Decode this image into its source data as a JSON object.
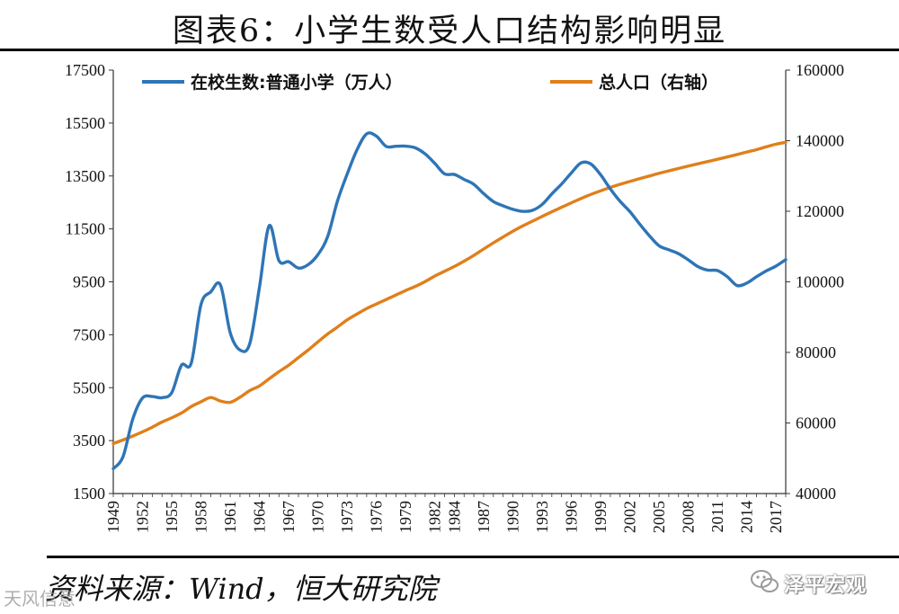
{
  "figure": {
    "title": "图表6：小学生数受人口结构影响明显",
    "source": "资料来源：Wind，恒大研究院",
    "watermark_left": "天风信意",
    "watermark_right": "泽平宏观"
  },
  "chart_data": {
    "type": "line",
    "title": "图表6：小学生数受人口结构影响明显",
    "x_tick_labels": [
      "1949",
      "1952",
      "1955",
      "1958",
      "1961",
      "1964",
      "1967",
      "1970",
      "1973",
      "1976",
      "1979",
      "1982",
      "1984",
      "1987",
      "1990",
      "1993",
      "1996",
      "1999",
      "2002",
      "2005",
      "2008",
      "2011",
      "2014",
      "2017"
    ],
    "x_range": [
      1949,
      2018
    ],
    "y_left": {
      "range": [
        1500,
        17500
      ],
      "ticks": [
        "1500",
        "3500",
        "5500",
        "7500",
        "9500",
        "11500",
        "13500",
        "15500",
        "17500"
      ]
    },
    "y_right": {
      "range": [
        40000,
        160000
      ],
      "ticks": [
        "40000",
        "60000",
        "80000",
        "100000",
        "120000",
        "140000",
        "160000"
      ]
    },
    "legend_position": "top",
    "grid": false,
    "series": [
      {
        "name": "在校生数:普通小学（万人）",
        "axis": "left",
        "color": "#2E75B6",
        "x": [
          1949,
          1950,
          1951,
          1952,
          1953,
          1954,
          1955,
          1956,
          1957,
          1958,
          1959,
          1960,
          1961,
          1962,
          1963,
          1964,
          1965,
          1966,
          1967,
          1968,
          1969,
          1970,
          1971,
          1972,
          1973,
          1974,
          1975,
          1976,
          1977,
          1978,
          1979,
          1980,
          1981,
          1982,
          1983,
          1984,
          1985,
          1986,
          1987,
          1988,
          1989,
          1990,
          1991,
          1992,
          1993,
          1994,
          1995,
          1996,
          1997,
          1998,
          1999,
          2000,
          2001,
          2002,
          2003,
          2004,
          2005,
          2006,
          2007,
          2008,
          2009,
          2010,
          2011,
          2012,
          2013,
          2014,
          2015,
          2016,
          2017,
          2018
        ],
        "values": [
          2439,
          2892,
          4315,
          5110,
          5166,
          5121,
          5313,
          6347,
          6428,
          8640,
          9118,
          9379,
          7578,
          6924,
          7158,
          9294,
          11621,
          10300,
          10260,
          10020,
          10150,
          10528,
          11211,
          12549,
          13570,
          14481,
          15094,
          15006,
          14618,
          14624,
          14627,
          14562,
          14333,
          13972,
          13578,
          13557,
          13370,
          13183,
          12836,
          12536,
          12373,
          12241,
          12164,
          12201,
          12421,
          12822,
          13195,
          13615,
          13995,
          13954,
          13548,
          13013,
          12544,
          12157,
          11690,
          11246,
          10864,
          10712,
          10564,
          10331,
          10072,
          9941,
          9926,
          9696,
          9361,
          9451,
          9692,
          9913,
          10094,
          10339
        ]
      },
      {
        "name": "总人口（右轴）",
        "axis": "right",
        "color": "#E07F1B",
        "x": [
          1949,
          1950,
          1951,
          1952,
          1953,
          1954,
          1955,
          1956,
          1957,
          1958,
          1959,
          1960,
          1961,
          1962,
          1963,
          1964,
          1965,
          1966,
          1967,
          1968,
          1969,
          1970,
          1971,
          1972,
          1973,
          1974,
          1975,
          1976,
          1977,
          1978,
          1979,
          1980,
          1981,
          1982,
          1983,
          1984,
          1985,
          1986,
          1987,
          1988,
          1989,
          1990,
          1991,
          1992,
          1993,
          1994,
          1995,
          1996,
          1997,
          1998,
          1999,
          2000,
          2001,
          2002,
          2003,
          2004,
          2005,
          2006,
          2007,
          2008,
          2009,
          2010,
          2011,
          2012,
          2013,
          2014,
          2015,
          2016,
          2017,
          2018
        ],
        "values": [
          54167,
          55196,
          56300,
          57482,
          58796,
          60266,
          61465,
          62828,
          64653,
          65994,
          67207,
          66207,
          65859,
          67295,
          69172,
          70499,
          72538,
          74542,
          76368,
          78534,
          80671,
          82992,
          85229,
          87177,
          89211,
          90859,
          92420,
          93717,
          94974,
          96259,
          97542,
          98705,
          100072,
          101654,
          103008,
          104357,
          105851,
          107507,
          109300,
          111026,
          112704,
          114333,
          115823,
          117171,
          118517,
          119850,
          121121,
          122389,
          123626,
          124761,
          125786,
          126743,
          127627,
          128453,
          129227,
          129988,
          130756,
          131448,
          132129,
          132802,
          133450,
          134091,
          134735,
          135404,
          136072,
          136782,
          137462,
          138271,
          139008,
          139538
        ]
      }
    ]
  }
}
